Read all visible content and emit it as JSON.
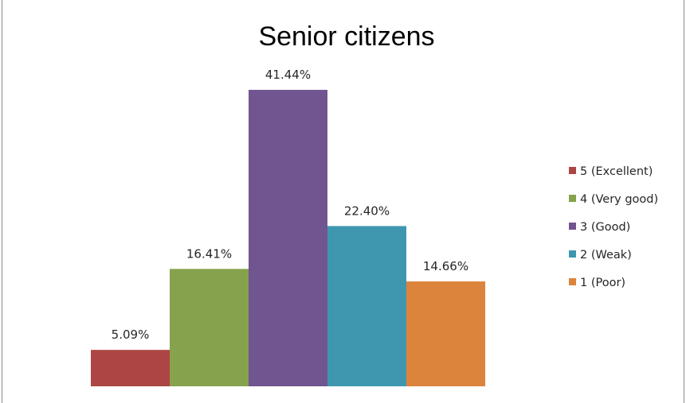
{
  "chart_data": {
    "type": "bar",
    "title": "Senior citizens",
    "xlabel": "",
    "ylabel": "",
    "ylim": [
      0,
      45
    ],
    "grid": false,
    "legend_position": "right",
    "categories": [
      "5 (Excellent)",
      "4 (Very good)",
      "3 (Good)",
      "2 (Weak)",
      "1 (Poor)"
    ],
    "values": [
      5.09,
      16.41,
      41.44,
      22.4,
      14.66
    ],
    "data_labels": [
      "5.09%",
      "16.41%",
      "41.44%",
      "22.40%",
      "14.66%"
    ],
    "colors": [
      "#ac4543",
      "#87a24d",
      "#705590",
      "#3e97af",
      "#dc843c"
    ]
  }
}
